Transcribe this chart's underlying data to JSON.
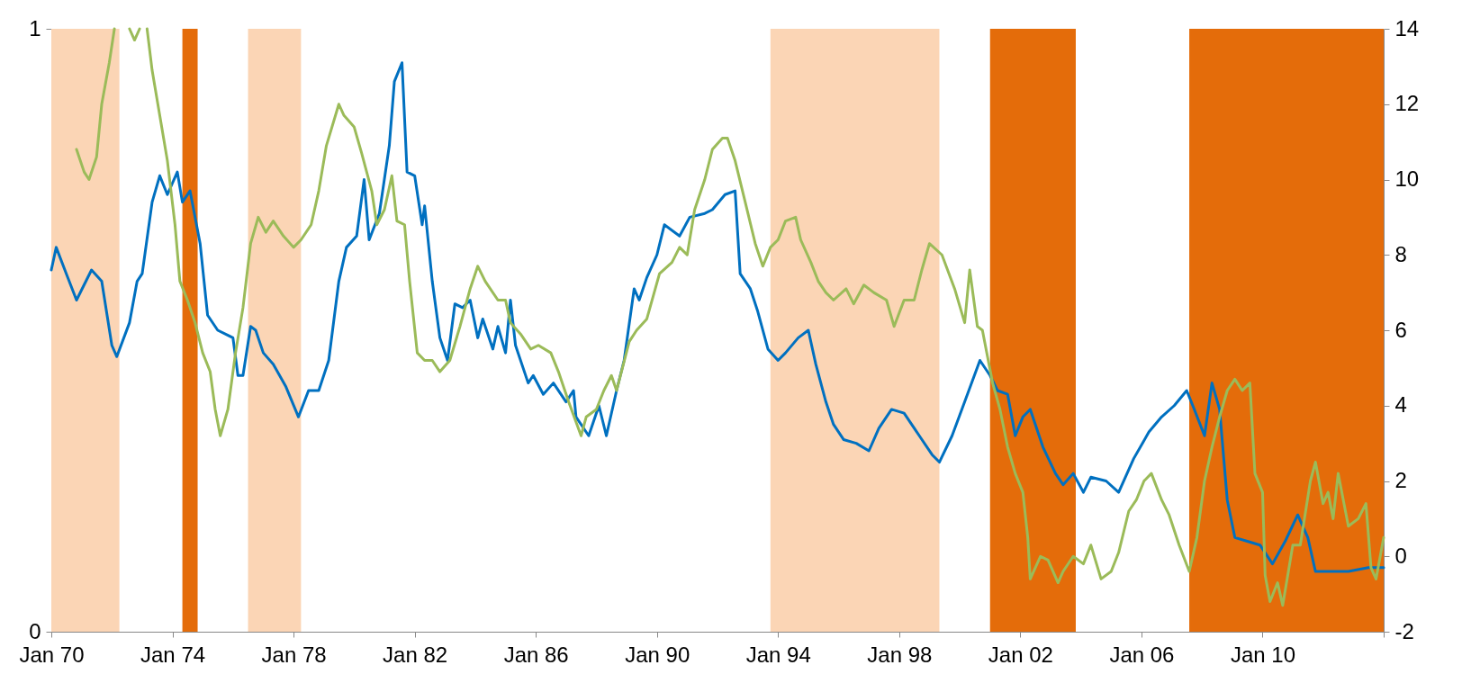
{
  "chart_data": {
    "type": "line",
    "xlim": [
      "1970-01",
      "2014-01"
    ],
    "xticks": [
      {
        "value": "1970-01",
        "label": "Jan 70"
      },
      {
        "value": "1974-01",
        "label": "Jan 74"
      },
      {
        "value": "1978-01",
        "label": "Jan 78"
      },
      {
        "value": "1982-01",
        "label": "Jan 82"
      },
      {
        "value": "1986-01",
        "label": "Jan 86"
      },
      {
        "value": "1990-01",
        "label": "Jan 90"
      },
      {
        "value": "1994-01",
        "label": "Jan 94"
      },
      {
        "value": "1998-01",
        "label": "Jan 98"
      },
      {
        "value": "2002-01",
        "label": "Jan 02"
      },
      {
        "value": "2006-01",
        "label": "Jan 06"
      },
      {
        "value": "2010-01",
        "label": "Jan 10"
      },
      {
        "value": "2014-01",
        "label": null
      }
    ],
    "ylim": [
      0,
      1
    ],
    "yticks": [
      0,
      1
    ],
    "y2lim": [
      -2,
      14
    ],
    "y2ticks": [
      -2,
      0,
      2,
      4,
      6,
      8,
      10,
      12,
      14
    ],
    "grid": false,
    "bands": [
      {
        "axis": "x",
        "from": "1970-01",
        "to": "1972-04",
        "color": "#fbd5b5"
      },
      {
        "axis": "x",
        "from": "1974-05",
        "to": "1974-11",
        "color": "#e46c0a"
      },
      {
        "axis": "x",
        "from": "1976-07",
        "to": "1978-04",
        "color": "#fbd5b5"
      },
      {
        "axis": "x",
        "from": "1993-10",
        "to": "1999-05",
        "color": "#fbd5b5"
      },
      {
        "axis": "x",
        "from": "2001-01",
        "to": "2003-11",
        "color": "#e46c0a"
      },
      {
        "axis": "x",
        "from": "2007-08",
        "to": "2014-01",
        "color": "#e46c0a"
      }
    ],
    "series": [
      {
        "color": "#0070c0",
        "axis": "y2",
        "x": [
          "1970-01",
          "1970-03",
          "1970-07",
          "1970-11",
          "1971-05",
          "1971-09",
          "1972-01",
          "1972-03",
          "1972-08",
          "1972-11",
          "1973-01",
          "1973-05",
          "1973-08",
          "1973-11",
          "1974-03",
          "1974-05",
          "1974-08",
          "1974-12",
          "1975-03",
          "1975-07",
          "1976-01",
          "1976-03",
          "1976-05",
          "1976-08",
          "1976-10",
          "1977-01",
          "1977-05",
          "1977-10",
          "1978-03",
          "1978-07",
          "1978-11",
          "1979-03",
          "1979-07",
          "1979-10",
          "1980-02",
          "1980-05",
          "1980-07",
          "1980-11",
          "1981-03",
          "1981-05",
          "1981-08",
          "1981-10",
          "1982-01",
          "1982-04",
          "1982-05",
          "1982-08",
          "1982-11",
          "1983-02",
          "1983-05",
          "1983-08",
          "1983-11",
          "1984-02",
          "1984-04",
          "1984-08",
          "1984-10",
          "1985-01",
          "1985-03",
          "1985-05",
          "1985-10",
          "1985-12",
          "1986-04",
          "1986-08",
          "1987-01",
          "1987-04",
          "1987-05",
          "1987-10",
          "1988-02",
          "1988-05",
          "1988-09",
          "1988-12",
          "1989-04",
          "1989-06",
          "1989-09",
          "1990-01",
          "1990-04",
          "1990-10",
          "1991-02",
          "1991-08",
          "1991-11",
          "1992-04",
          "1992-08",
          "1992-10",
          "1993-02",
          "1993-05",
          "1993-09",
          "1994-01",
          "1994-04",
          "1994-09",
          "1995-01",
          "1995-04",
          "1995-08",
          "1995-11",
          "1996-03",
          "1996-08",
          "1997-01",
          "1997-05",
          "1997-10",
          "1998-03",
          "1998-09",
          "1999-02",
          "1999-05",
          "1999-10",
          "2000-03",
          "2000-09",
          "2001-01",
          "2001-04",
          "2001-08",
          "2001-11",
          "2002-02",
          "2002-05",
          "2002-10",
          "2003-03",
          "2003-06",
          "2003-10",
          "2004-02",
          "2004-05",
          "2004-11",
          "2005-04",
          "2005-10",
          "2006-04",
          "2006-09",
          "2007-02",
          "2007-07",
          "2007-10",
          "2008-02",
          "2008-05",
          "2008-08",
          "2008-11",
          "2009-02",
          "2009-07",
          "2009-12",
          "2010-05",
          "2010-10",
          "2011-03",
          "2011-07",
          "2011-10",
          "2012-04",
          "2012-11",
          "2013-07",
          "2014-01"
        ],
        "values": [
          7.6,
          8.2,
          7.5,
          6.8,
          7.6,
          7.3,
          5.6,
          5.3,
          6.2,
          7.3,
          7.5,
          9.4,
          10.1,
          9.6,
          10.2,
          9.4,
          9.7,
          8.3,
          6.4,
          6.0,
          5.8,
          4.8,
          4.8,
          6.1,
          6.0,
          5.4,
          5.1,
          4.5,
          3.7,
          4.4,
          4.4,
          5.2,
          7.3,
          8.2,
          8.5,
          10.0,
          8.4,
          9.1,
          10.9,
          12.6,
          13.1,
          10.2,
          10.1,
          8.8,
          9.3,
          7.3,
          5.8,
          5.2,
          6.7,
          6.6,
          6.8,
          5.8,
          6.3,
          5.5,
          6.1,
          5.4,
          6.8,
          5.6,
          4.6,
          4.8,
          4.3,
          4.6,
          4.1,
          4.4,
          3.7,
          3.2,
          4.0,
          3.2,
          4.4,
          5.2,
          7.1,
          6.8,
          7.4,
          8.0,
          8.8,
          8.5,
          9.0,
          9.1,
          9.2,
          9.6,
          9.7,
          7.5,
          7.1,
          6.5,
          5.5,
          5.2,
          5.4,
          5.8,
          6.0,
          5.1,
          4.1,
          3.5,
          3.1,
          3.0,
          2.8,
          3.4,
          3.9,
          3.8,
          3.2,
          2.7,
          2.5,
          3.2,
          4.1,
          5.2,
          4.8,
          4.4,
          4.3,
          3.2,
          3.7,
          3.9,
          2.9,
          2.2,
          1.9,
          2.2,
          1.7,
          2.1,
          2.0,
          1.7,
          2.6,
          3.3,
          3.7,
          4.0,
          4.4,
          3.9,
          3.2,
          4.6,
          3.9,
          1.5,
          0.5,
          0.4,
          0.3,
          -0.2,
          0.4,
          1.1,
          0.5,
          -0.4,
          -0.4,
          -0.4,
          -0.3,
          -0.3
        ]
      },
      {
        "color": "#9bbb59",
        "axis": "y2",
        "x": [
          "1970-11",
          "1971-02",
          "1971-04",
          "1971-07",
          "1971-09",
          "1971-12",
          "1972-02",
          "1972-04",
          "1972-08",
          "1972-10",
          "1972-12",
          "1973-01",
          "1973-03",
          "1973-05",
          "1973-08",
          "1973-11",
          "1974-02",
          "1974-04",
          "1974-07",
          "1974-10",
          "1975-01",
          "1975-04",
          "1975-06",
          "1975-08",
          "1975-11",
          "1976-02",
          "1976-05",
          "1976-08",
          "1976-11",
          "1977-02",
          "1977-05",
          "1977-09",
          "1978-01",
          "1978-04",
          "1978-08",
          "1978-11",
          "1979-02",
          "1979-07",
          "1979-09",
          "1980-01",
          "1980-04",
          "1980-08",
          "1980-10",
          "1981-01",
          "1981-04",
          "1981-06",
          "1981-09",
          "1981-11",
          "1982-02",
          "1982-05",
          "1982-08",
          "1982-11",
          "1983-03",
          "1983-07",
          "1983-11",
          "1984-02",
          "1984-05",
          "1984-10",
          "1985-01",
          "1985-03",
          "1985-07",
          "1985-11",
          "1986-02",
          "1986-07",
          "1986-10",
          "1987-02",
          "1987-07",
          "1987-09",
          "1988-01",
          "1988-04",
          "1988-07",
          "1988-09",
          "1989-02",
          "1989-05",
          "1989-09",
          "1990-02",
          "1990-07",
          "1990-10",
          "1991-01",
          "1991-04",
          "1991-08",
          "1991-11",
          "1992-03",
          "1992-05",
          "1992-08",
          "1992-12",
          "1993-04",
          "1993-07",
          "1993-10",
          "1994-01",
          "1994-04",
          "1994-08",
          "1994-10",
          "1995-02",
          "1995-05",
          "1995-08",
          "1995-11",
          "1996-04",
          "1996-07",
          "1996-11",
          "1997-03",
          "1997-08",
          "1997-11",
          "1998-03",
          "1998-07",
          "1998-10",
          "1999-01",
          "1999-06",
          "1999-11",
          "2000-03",
          "2000-05",
          "2000-08",
          "2000-10",
          "2001-02",
          "2001-05",
          "2001-08",
          "2001-11",
          "2002-02",
          "2002-04",
          "2002-05",
          "2002-09",
          "2002-12",
          "2003-04",
          "2003-06",
          "2003-10",
          "2004-02",
          "2004-05",
          "2004-09",
          "2005-01",
          "2005-04",
          "2005-08",
          "2005-11",
          "2006-02",
          "2006-05",
          "2006-09",
          "2006-12",
          "2007-04",
          "2007-08",
          "2007-11",
          "2008-02",
          "2008-05",
          "2008-08",
          "2008-11",
          "2009-02",
          "2009-05",
          "2009-08",
          "2009-10",
          "2010-01",
          "2010-02",
          "2010-04",
          "2010-07",
          "2010-09",
          "2011-01",
          "2011-04",
          "2011-08",
          "2011-10",
          "2012-01",
          "2012-03",
          "2012-05",
          "2012-07",
          "2012-11",
          "2013-03",
          "2013-06",
          "2013-08",
          "2013-10",
          "2014-01"
        ],
        "values": [
          10.8,
          10.2,
          10.0,
          10.6,
          12.0,
          13.1,
          14.0,
          null,
          14.0,
          13.7,
          14.0,
          null,
          14.0,
          12.9,
          11.7,
          10.5,
          8.8,
          7.3,
          6.8,
          6.2,
          5.4,
          4.9,
          3.9,
          3.2,
          3.9,
          5.4,
          6.6,
          8.3,
          9.0,
          8.6,
          8.9,
          8.5,
          8.2,
          8.4,
          8.8,
          9.7,
          10.9,
          12.0,
          11.7,
          11.4,
          10.7,
          9.7,
          8.8,
          9.2,
          10.1,
          8.9,
          8.8,
          7.3,
          5.4,
          5.2,
          5.2,
          4.9,
          5.2,
          6.1,
          7.1,
          7.7,
          7.3,
          6.8,
          6.8,
          6.2,
          5.9,
          5.5,
          5.6,
          5.4,
          4.9,
          4.1,
          3.2,
          3.7,
          3.9,
          4.4,
          4.8,
          4.4,
          5.7,
          6.0,
          6.3,
          7.5,
          7.8,
          8.2,
          8.0,
          9.2,
          10.0,
          10.8,
          11.1,
          11.1,
          10.5,
          9.4,
          8.3,
          7.7,
          8.2,
          8.4,
          8.9,
          9.0,
          8.4,
          7.8,
          7.3,
          7.0,
          6.8,
          7.1,
          6.7,
          7.2,
          7.0,
          6.8,
          6.1,
          6.8,
          6.8,
          7.6,
          8.3,
          8.0,
          7.1,
          6.2,
          7.6,
          6.1,
          6.0,
          4.6,
          3.9,
          2.9,
          2.2,
          1.7,
          0.5,
          -0.6,
          0.0,
          -0.1,
          -0.7,
          -0.4,
          0.0,
          -0.2,
          0.3,
          -0.6,
          -0.4,
          0.1,
          1.2,
          1.5,
          2.0,
          2.2,
          1.5,
          1.1,
          0.3,
          -0.4,
          0.5,
          2.0,
          2.9,
          3.7,
          4.4,
          4.7,
          4.4,
          4.6,
          2.2,
          1.7,
          -0.5,
          -1.2,
          -0.7,
          -1.3,
          0.3,
          0.3,
          2.0,
          2.5,
          1.4,
          1.7,
          1.0,
          2.2,
          0.8,
          1.0,
          1.4,
          -0.3,
          -0.6,
          0.5
        ]
      }
    ]
  }
}
